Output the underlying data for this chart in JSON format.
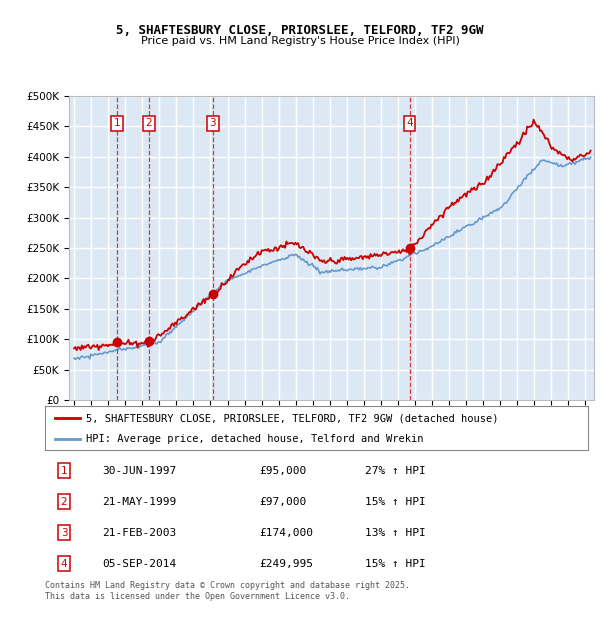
{
  "title_line1": "5, SHAFTESBURY CLOSE, PRIORSLEE, TELFORD, TF2 9GW",
  "title_line2": "Price paid vs. HM Land Registry's House Price Index (HPI)",
  "legend_line1": "5, SHAFTESBURY CLOSE, PRIORSLEE, TELFORD, TF2 9GW (detached house)",
  "legend_line2": "HPI: Average price, detached house, Telford and Wrekin",
  "footer_line1": "Contains HM Land Registry data © Crown copyright and database right 2025.",
  "footer_line2": "This data is licensed under the Open Government Licence v3.0.",
  "transactions": [
    {
      "num": 1,
      "date": "30-JUN-1997",
      "price": 95000,
      "pct": "27%",
      "year": 1997.5
    },
    {
      "num": 2,
      "date": "21-MAY-1999",
      "price": 97000,
      "pct": "15%",
      "year": 1999.38
    },
    {
      "num": 3,
      "date": "21-FEB-2003",
      "price": 174000,
      "pct": "13%",
      "year": 2003.13
    },
    {
      "num": 4,
      "date": "05-SEP-2014",
      "price": 249995,
      "pct": "15%",
      "year": 2014.68
    }
  ],
  "ylim": [
    0,
    500000
  ],
  "yticks": [
    0,
    50000,
    100000,
    150000,
    200000,
    250000,
    300000,
    350000,
    400000,
    450000,
    500000
  ],
  "xlim_start": 1994.7,
  "xlim_end": 2025.5,
  "red_color": "#cc0000",
  "hpi_color": "#6699cc",
  "grid_color": "#ffffff",
  "plot_bg_color": "#dce9f5"
}
